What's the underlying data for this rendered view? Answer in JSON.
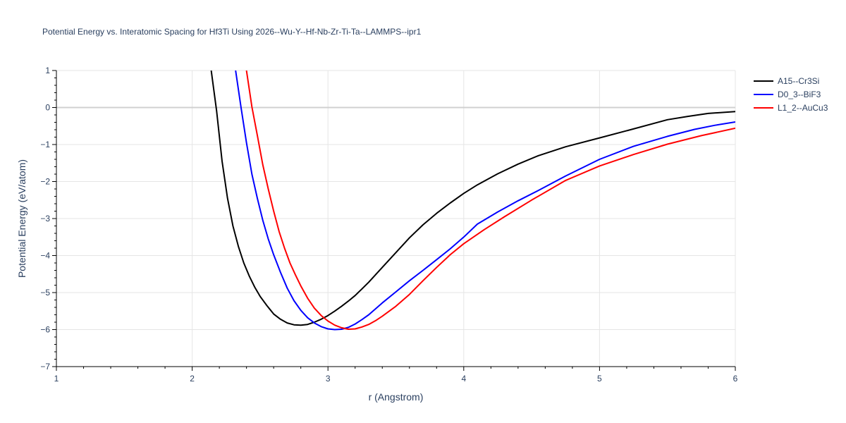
{
  "chart_data": {
    "type": "line",
    "title": "Potential Energy vs. Interatomic Spacing for Hf3Ti Using 2026--Wu-Y--Hf-Nb-Zr-Ti-Ta--LAMMPS--ipr1",
    "xlabel": "r (Angstrom)",
    "ylabel": "Potential Energy (eV/atom)",
    "xlim": [
      1,
      6
    ],
    "ylim": [
      -7,
      1
    ],
    "x_ticks": [
      "1",
      "2",
      "3",
      "4",
      "5",
      "6"
    ],
    "y_ticks": [
      "1",
      "0",
      "−1",
      "−2",
      "−3",
      "−4",
      "−5",
      "−6",
      "−7"
    ],
    "grid": true,
    "legend_position": "top-right",
    "series": [
      {
        "name": "A15--Cr3Si",
        "color": "#000000",
        "x": [
          2.14,
          2.18,
          2.22,
          2.26,
          2.3,
          2.34,
          2.38,
          2.42,
          2.46,
          2.5,
          2.55,
          2.6,
          2.65,
          2.7,
          2.75,
          2.8,
          2.85,
          2.9,
          2.95,
          3.0,
          3.05,
          3.1,
          3.15,
          3.2,
          3.25,
          3.3,
          3.4,
          3.5,
          3.6,
          3.7,
          3.8,
          3.9,
          4.0,
          4.1,
          4.25,
          4.4,
          4.55,
          4.75,
          5.0,
          5.25,
          5.5,
          5.65,
          5.8,
          6.0
        ],
        "y": [
          1.0,
          -0.1,
          -1.45,
          -2.45,
          -3.2,
          -3.75,
          -4.2,
          -4.55,
          -4.85,
          -5.1,
          -5.35,
          -5.58,
          -5.72,
          -5.82,
          -5.87,
          -5.88,
          -5.86,
          -5.8,
          -5.72,
          -5.62,
          -5.5,
          -5.37,
          -5.23,
          -5.08,
          -4.9,
          -4.72,
          -4.32,
          -3.92,
          -3.52,
          -3.17,
          -2.86,
          -2.58,
          -2.32,
          -2.09,
          -1.79,
          -1.53,
          -1.3,
          -1.06,
          -0.82,
          -0.58,
          -0.33,
          -0.24,
          -0.16,
          -0.11
        ]
      },
      {
        "name": "D0_3--BiF3",
        "color": "#0000ff",
        "x": [
          2.32,
          2.36,
          2.4,
          2.44,
          2.48,
          2.52,
          2.56,
          2.6,
          2.65,
          2.7,
          2.75,
          2.8,
          2.85,
          2.9,
          2.95,
          3.0,
          3.05,
          3.1,
          3.15,
          3.2,
          3.25,
          3.3,
          3.35,
          3.4,
          3.5,
          3.6,
          3.7,
          3.8,
          3.9,
          4.0,
          4.1,
          4.25,
          4.4,
          4.55,
          4.75,
          5.0,
          5.25,
          5.5,
          5.7,
          5.85,
          6.0
        ],
        "y": [
          1.0,
          0.0,
          -0.95,
          -1.8,
          -2.45,
          -3.05,
          -3.55,
          -3.98,
          -4.45,
          -4.88,
          -5.22,
          -5.48,
          -5.68,
          -5.82,
          -5.92,
          -5.98,
          -6.0,
          -5.99,
          -5.94,
          -5.85,
          -5.73,
          -5.6,
          -5.44,
          -5.28,
          -4.98,
          -4.68,
          -4.4,
          -4.11,
          -3.82,
          -3.5,
          -3.15,
          -2.82,
          -2.52,
          -2.24,
          -1.85,
          -1.4,
          -1.05,
          -0.78,
          -0.59,
          -0.48,
          -0.39
        ]
      },
      {
        "name": "L1_2--AuCu3",
        "color": "#ff0000",
        "x": [
          2.4,
          2.44,
          2.48,
          2.52,
          2.56,
          2.6,
          2.64,
          2.68,
          2.72,
          2.76,
          2.8,
          2.85,
          2.9,
          2.95,
          3.0,
          3.05,
          3.1,
          3.15,
          3.2,
          3.25,
          3.3,
          3.35,
          3.4,
          3.5,
          3.6,
          3.7,
          3.8,
          3.9,
          4.0,
          4.15,
          4.3,
          4.5,
          4.75,
          5.0,
          5.25,
          5.5,
          5.75,
          6.0
        ],
        "y": [
          1.0,
          0.02,
          -0.75,
          -1.55,
          -2.2,
          -2.8,
          -3.35,
          -3.8,
          -4.2,
          -4.52,
          -4.82,
          -5.15,
          -5.42,
          -5.62,
          -5.77,
          -5.88,
          -5.95,
          -5.99,
          -5.98,
          -5.93,
          -5.86,
          -5.76,
          -5.64,
          -5.37,
          -5.05,
          -4.68,
          -4.32,
          -3.98,
          -3.68,
          -3.3,
          -2.95,
          -2.5,
          -1.97,
          -1.58,
          -1.27,
          -0.99,
          -0.76,
          -0.56
        ]
      }
    ]
  }
}
